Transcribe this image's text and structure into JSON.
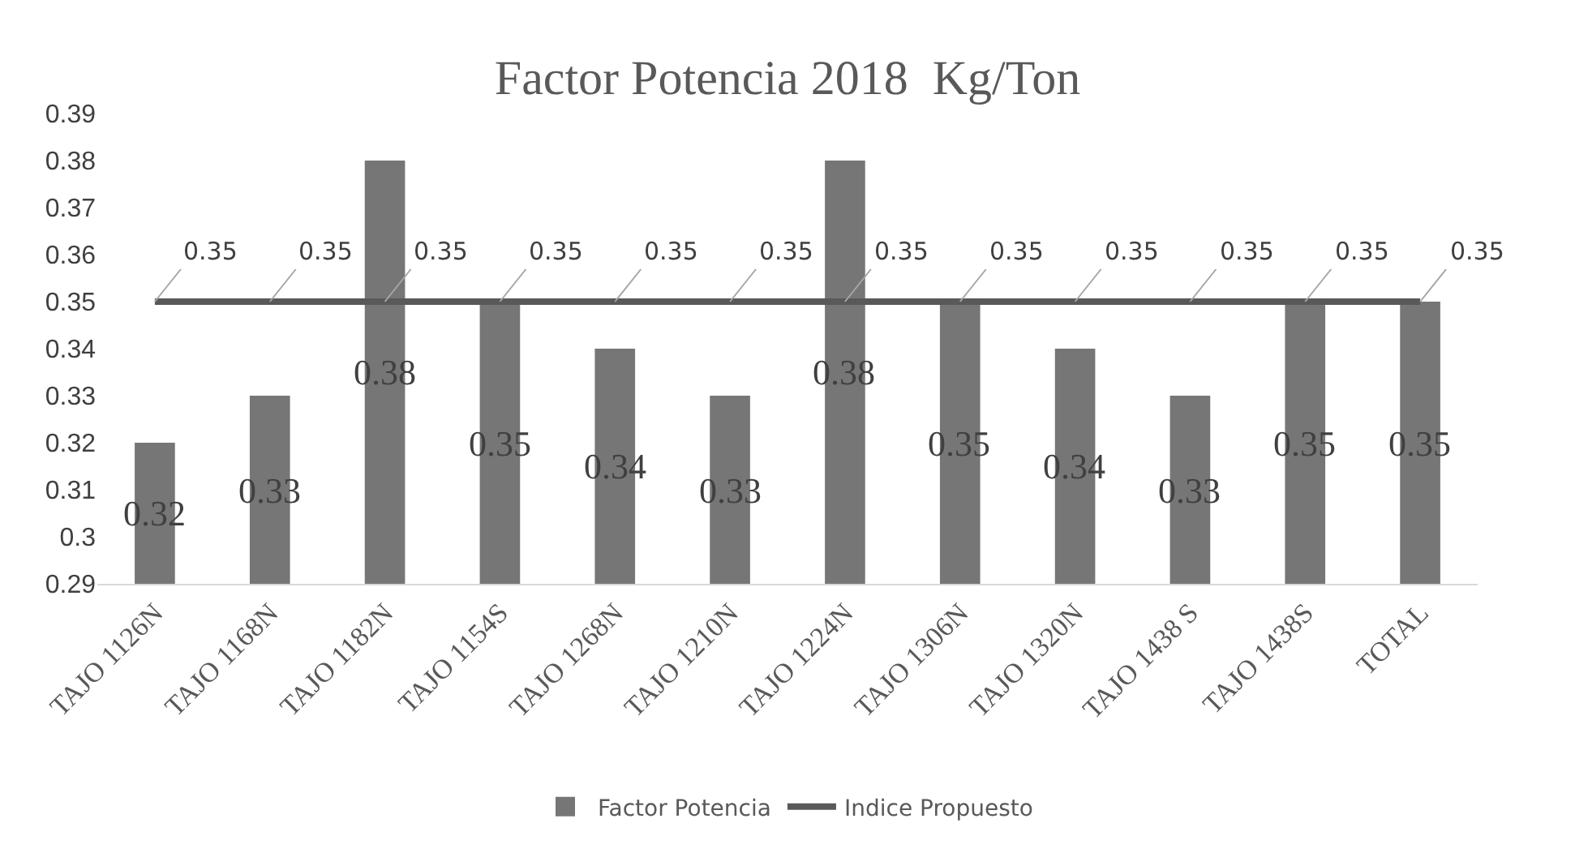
{
  "chart_data": {
    "type": "bar",
    "title": "Factor Potencia 2018  Kg/Ton",
    "categories": [
      "TAJO 1126N",
      "TAJO 1168N",
      "TAJO 1182N",
      "TAJO 1154S",
      "TAJO 1268N",
      "TAJO 1210N",
      "TAJO 1224N",
      "TAJO 1306N",
      "TAJO 1320N",
      "TAJO 1438 S",
      "TAJO 1438S",
      "TOTAL"
    ],
    "series": [
      {
        "name": "Factor Potencia",
        "color": "#767676",
        "values": [
          0.32,
          0.33,
          0.38,
          0.35,
          0.34,
          0.33,
          0.38,
          0.35,
          0.34,
          0.33,
          0.35,
          0.35
        ]
      },
      {
        "name": "Indice Propuesto",
        "type": "line",
        "color": "#595959",
        "values": [
          0.35,
          0.35,
          0.35,
          0.35,
          0.35,
          0.35,
          0.35,
          0.35,
          0.35,
          0.35,
          0.35,
          0.35
        ]
      }
    ],
    "ylim": [
      0.29,
      0.39
    ],
    "yticks": [
      0.29,
      0.3,
      0.31,
      0.32,
      0.33,
      0.34,
      0.35,
      0.36,
      0.37,
      0.38,
      0.39
    ],
    "grid": false,
    "legend": "bottom",
    "data_labels": true,
    "marker": "none",
    "line_style": "solid"
  }
}
